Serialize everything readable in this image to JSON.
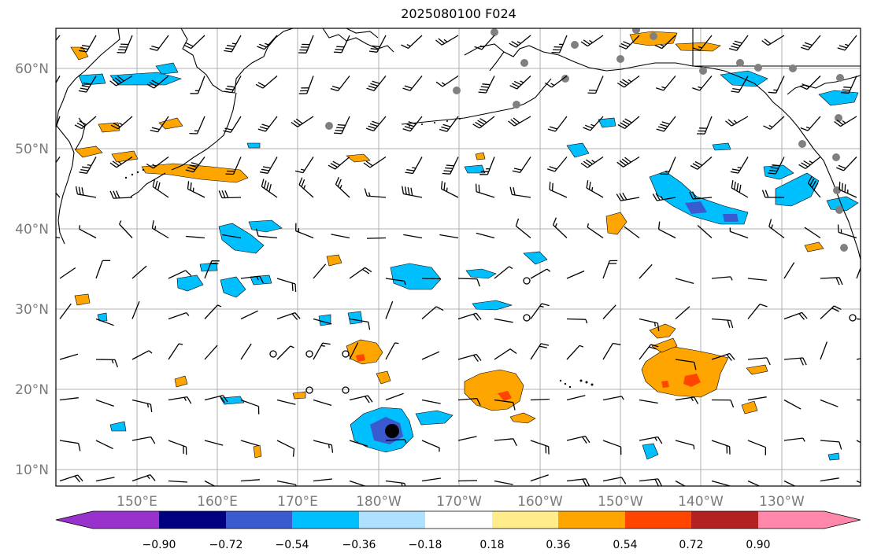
{
  "title": "2025080100 F024",
  "lat_labels": [
    "60°N",
    "50°N",
    "40°N",
    "30°N",
    "20°N",
    "10°N"
  ],
  "lon_labels": [
    "150°E",
    "160°E",
    "170°E",
    "180°W",
    "170°W",
    "160°W",
    "150°W",
    "140°W",
    "130°W"
  ],
  "colorbar": {
    "ticks": [
      "−0.90",
      "−0.72",
      "−0.54",
      "−0.36",
      "−0.18",
      "0.18",
      "0.36",
      "0.54",
      "0.72",
      "0.90"
    ],
    "colors": [
      "#9932cc",
      "#000080",
      "#3a5bcf",
      "#00bfff",
      "#aee0ff",
      "#ffffff",
      "#ffec8b",
      "#ffa500",
      "#ff4500",
      "#b22222",
      "#ff88aa"
    ]
  },
  "colors": {
    "land": "#000000",
    "grid": "#b0b0b0",
    "station": "#808080",
    "pos_fill": "#ffa500",
    "pos_strong": "#ff4500",
    "neg_fill": "#00bfff",
    "neg_strong": "#3a5bcf"
  }
}
